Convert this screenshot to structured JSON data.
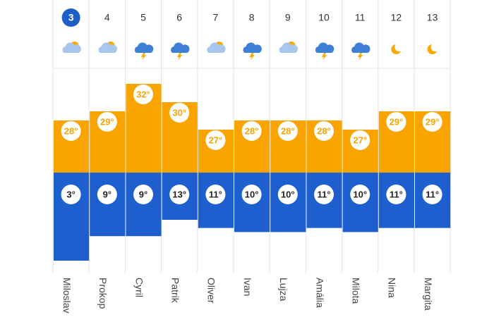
{
  "forecast": {
    "days": [
      {
        "date": 3,
        "name": "Miloslav",
        "icon": "partly-cloudy",
        "high": 28,
        "high_label": "28°",
        "low": 3,
        "low_label": "3°"
      },
      {
        "date": 4,
        "name": "Prokop",
        "icon": "partly-cloudy",
        "high": 29,
        "high_label": "29°",
        "low": 9,
        "low_label": "9°"
      },
      {
        "date": 5,
        "name": "Cyril",
        "icon": "storm",
        "high": 32,
        "high_label": "32°",
        "low": 9,
        "low_label": "9°"
      },
      {
        "date": 6,
        "name": "Patrik",
        "icon": "storm",
        "high": 30,
        "high_label": "30°",
        "low": 13,
        "low_label": "13°"
      },
      {
        "date": 7,
        "name": "Oliver",
        "icon": "partly-cloudy",
        "high": 27,
        "high_label": "27°",
        "low": 11,
        "low_label": "11°"
      },
      {
        "date": 8,
        "name": "Ivan",
        "icon": "storm",
        "high": 28,
        "high_label": "28°",
        "low": 10,
        "low_label": "10°"
      },
      {
        "date": 9,
        "name": "Lujza",
        "icon": "partly-cloudy",
        "high": 28,
        "high_label": "28°",
        "low": 10,
        "low_label": "10°"
      },
      {
        "date": 10,
        "name": "Amália",
        "icon": "storm",
        "high": 28,
        "high_label": "28°",
        "low": 11,
        "low_label": "11°"
      },
      {
        "date": 11,
        "name": "Milota",
        "icon": "storm",
        "high": 27,
        "high_label": "27°",
        "low": 10,
        "low_label": "10°"
      },
      {
        "date": 12,
        "name": "Nina",
        "icon": "moon",
        "high": 29,
        "high_label": "29°",
        "low": 11,
        "low_label": "11°"
      },
      {
        "date": 13,
        "name": "Margita",
        "icon": "moon",
        "high": 29,
        "high_label": "29°",
        "low": 11,
        "low_label": "11°"
      }
    ],
    "high_color": "#f9a400",
    "low_color": "#1e5fcf",
    "today_color": "#1d5fc7"
  }
}
